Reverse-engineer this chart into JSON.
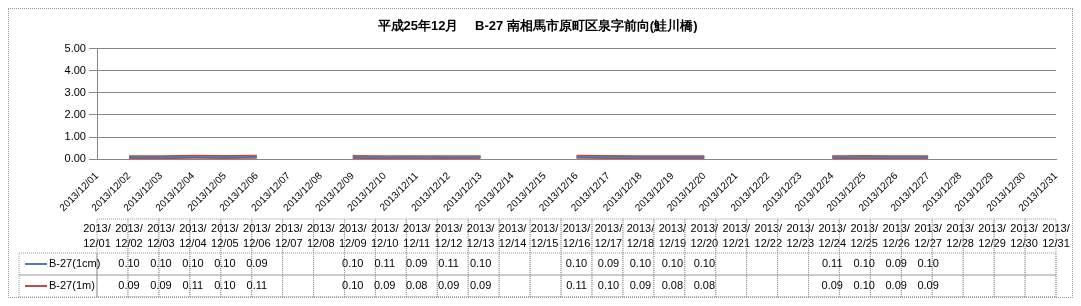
{
  "chart_data": {
    "type": "line",
    "title": "平成25年12月　 B-27 南相馬市原町区泉字前向(鮭川橋)",
    "categories": [
      "2013/12/01",
      "2013/12/02",
      "2013/12/03",
      "2013/12/04",
      "2013/12/05",
      "2013/12/06",
      "2013/12/07",
      "2013/12/08",
      "2013/12/09",
      "2013/12/10",
      "2013/12/11",
      "2013/12/12",
      "2013/12/13",
      "2013/12/14",
      "2013/12/15",
      "2013/12/16",
      "2013/12/17",
      "2013/12/18",
      "2013/12/19",
      "2013/12/20",
      "2013/12/21",
      "2013/12/22",
      "2013/12/23",
      "2013/12/24",
      "2013/12/25",
      "2013/12/26",
      "2013/12/27",
      "2013/12/28",
      "2013/12/29",
      "2013/12/30",
      "2013/12/31"
    ],
    "series": [
      {
        "name": "B-27(1cm)",
        "color": "#4a7ebb",
        "values": [
          null,
          0.1,
          0.1,
          0.1,
          0.1,
          0.09,
          null,
          null,
          0.1,
          0.11,
          0.09,
          0.11,
          0.1,
          null,
          null,
          0.1,
          0.09,
          0.1,
          0.1,
          0.1,
          null,
          null,
          null,
          0.11,
          0.1,
          0.09,
          0.1,
          null,
          null,
          null,
          null
        ],
        "value_labels": [
          null,
          "0.10",
          "0.10",
          "0.10",
          "0.10",
          "0.09",
          null,
          null,
          "0.10",
          "0.11",
          "0.09",
          "0.11",
          "0.10",
          null,
          null,
          "0.10",
          "0.09",
          "0.10",
          "0.10",
          "0.10",
          null,
          null,
          null,
          "0.11",
          "0.10",
          "0.09",
          "0.10",
          null,
          null,
          null,
          null
        ]
      },
      {
        "name": "B-27(1m)",
        "color": "#be4b48",
        "values": [
          null,
          0.09,
          0.09,
          0.11,
          0.1,
          0.11,
          null,
          null,
          0.1,
          0.09,
          0.08,
          0.09,
          0.09,
          null,
          null,
          0.11,
          0.1,
          0.09,
          0.08,
          0.08,
          null,
          null,
          null,
          0.09,
          0.1,
          0.09,
          0.09,
          null,
          null,
          null,
          null
        ],
        "value_labels": [
          null,
          "0.09",
          "0.09",
          "0.11",
          "0.10",
          "0.11",
          null,
          null,
          "0.10",
          "0.09",
          "0.08",
          "0.09",
          "0.09",
          null,
          null,
          "0.11",
          "0.10",
          "0.09",
          "0.08",
          "0.08",
          null,
          null,
          null,
          "0.09",
          "0.10",
          "0.09",
          "0.09",
          null,
          null,
          null,
          null
        ]
      }
    ],
    "ylim": [
      0,
      5
    ],
    "yticks": [
      {
        "value": 0,
        "label": "0.00"
      },
      {
        "value": 1,
        "label": "1.00"
      },
      {
        "value": 2,
        "label": "2.00"
      },
      {
        "value": 3,
        "label": "3.00"
      },
      {
        "value": 4,
        "label": "4.00"
      },
      {
        "value": 5,
        "label": "5.00"
      }
    ],
    "grid": "y",
    "legend": "bottom",
    "marker": "none",
    "line_style": "solid"
  }
}
